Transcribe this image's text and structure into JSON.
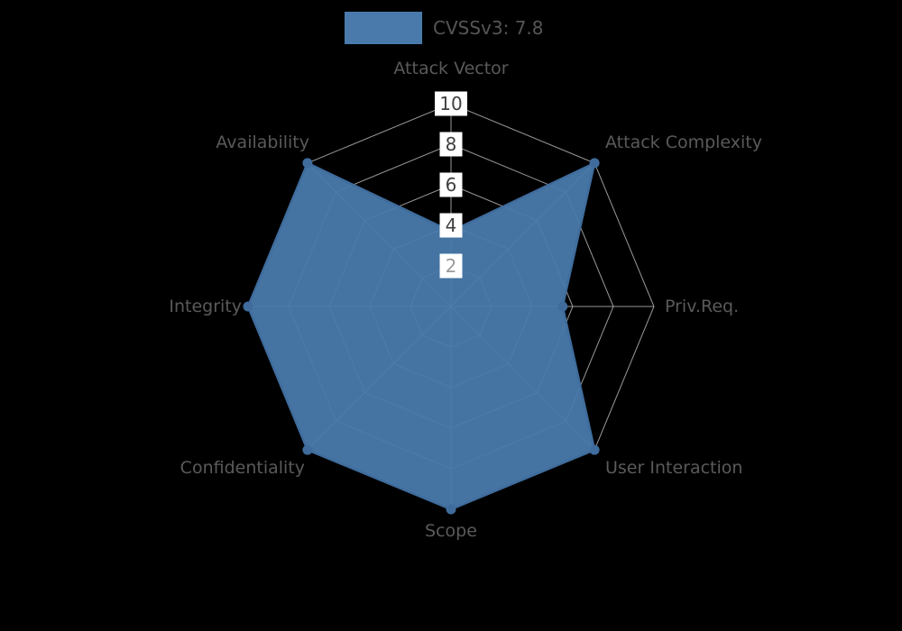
{
  "background_color": "#000000",
  "legend": {
    "label": "CVSSv3: 7.8",
    "swatch_color": "#4a7aab",
    "position": "top-center"
  },
  "chart_data": {
    "type": "radar",
    "title": "CVSSv3: 7.8",
    "categories": [
      "Attack Vector",
      "Attack Complexity",
      "Priv.Req.",
      "User Interaction",
      "Scope",
      "Confidentiality",
      "Integrity",
      "Availability"
    ],
    "series": [
      {
        "name": "CVSSv3: 7.8",
        "values": [
          3.7,
          10,
          5.5,
          10,
          10,
          10,
          10,
          10
        ]
      }
    ],
    "axis_range": [
      0,
      10
    ],
    "max": 10,
    "ticks": [
      2,
      4,
      6,
      8,
      10
    ],
    "tick_label_colors": [
      "#9a9a9a",
      "#3f3f3f",
      "#3f3f3f",
      "#3f3f3f",
      "#3f3f3f"
    ],
    "tick_bg": "#ffffff",
    "grid": true,
    "grid_shape": "polygon",
    "grid_color": "#999999",
    "fill_color": "#4a7aab",
    "fill_opacity": 0.95,
    "edge_color": "#3f6c9c",
    "label_color": "#5a5a5a"
  }
}
